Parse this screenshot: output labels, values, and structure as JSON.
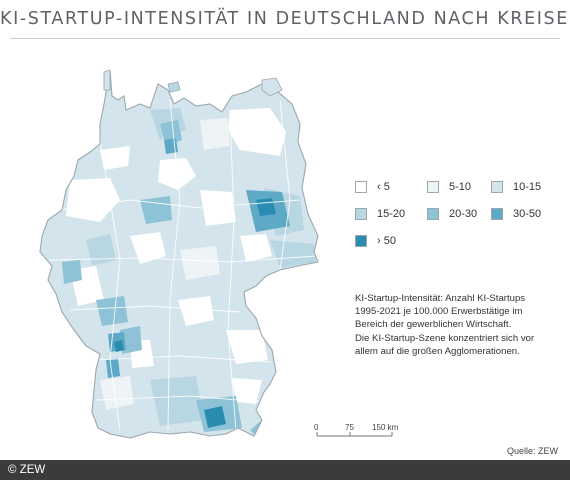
{
  "title": "KI-STARTUP-INTENSITÄT IN DEUTSCHLAND NACH KREISEN",
  "legend": {
    "items": [
      {
        "label": "‹ 5",
        "color": "#ffffff"
      },
      {
        "label": "5-10",
        "color": "#eef4f6"
      },
      {
        "label": "10-15",
        "color": "#d3e4ec"
      },
      {
        "label": "15-20",
        "color": "#b9d7e2"
      },
      {
        "label": "20-30",
        "color": "#8ec2d6"
      },
      {
        "label": "30-50",
        "color": "#5ea9c6"
      },
      {
        "label": "› 50",
        "color": "#2b8cb1"
      }
    ]
  },
  "description": [
    "KI-Startup-Intensität: Anzahl KI-Startups",
    "1995-2021 je 100.000 Erwerbstätige im",
    "Bereich der gewerblichen Wirtschaft.",
    "Die KI-Startup-Szene konzentriert sich vor",
    "allem auf die großen Agglomerationen."
  ],
  "scalebar": {
    "labels": [
      "0",
      "75",
      "150 km"
    ]
  },
  "source": "Quelle: ZEW",
  "footer": "© ZEW",
  "colors": {
    "border": "#9aa7af",
    "title": "#5e6166",
    "footer_bg": "#3b3b3b"
  }
}
